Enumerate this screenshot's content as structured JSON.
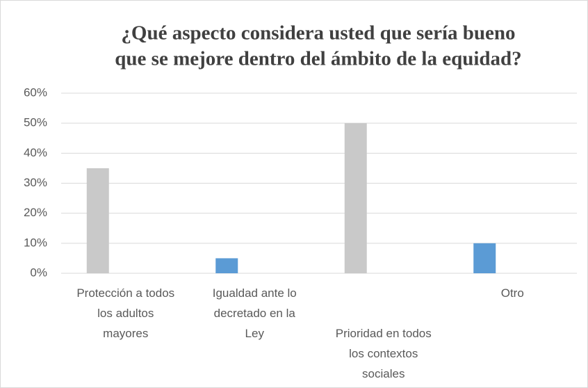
{
  "chart_data": {
    "type": "bar",
    "title": [
      "¿Qué aspecto considera usted que sería bueno",
      "que se mejore dentro del ámbito de la equidad?"
    ],
    "categories": [
      "Protección a todos los adultos mayores",
      "Igualdad ante lo decretado en la Ley",
      "Prioridad en todos los contextos sociales",
      "Otro"
    ],
    "values": [
      35,
      5,
      50,
      10
    ],
    "colors": [
      "#c9c9c9",
      "#5b9bd5",
      "#c9c9c9",
      "#5b9bd5"
    ],
    "ylim": [
      0,
      60
    ],
    "yticks": [
      {
        "value": 0,
        "label": "0%"
      },
      {
        "value": 10,
        "label": "10%"
      },
      {
        "value": 20,
        "label": "20%"
      },
      {
        "value": 30,
        "label": "30%"
      },
      {
        "value": 40,
        "label": "40%"
      },
      {
        "value": 50,
        "label": "50%"
      },
      {
        "value": 60,
        "label": "60%"
      }
    ],
    "grid": true
  }
}
